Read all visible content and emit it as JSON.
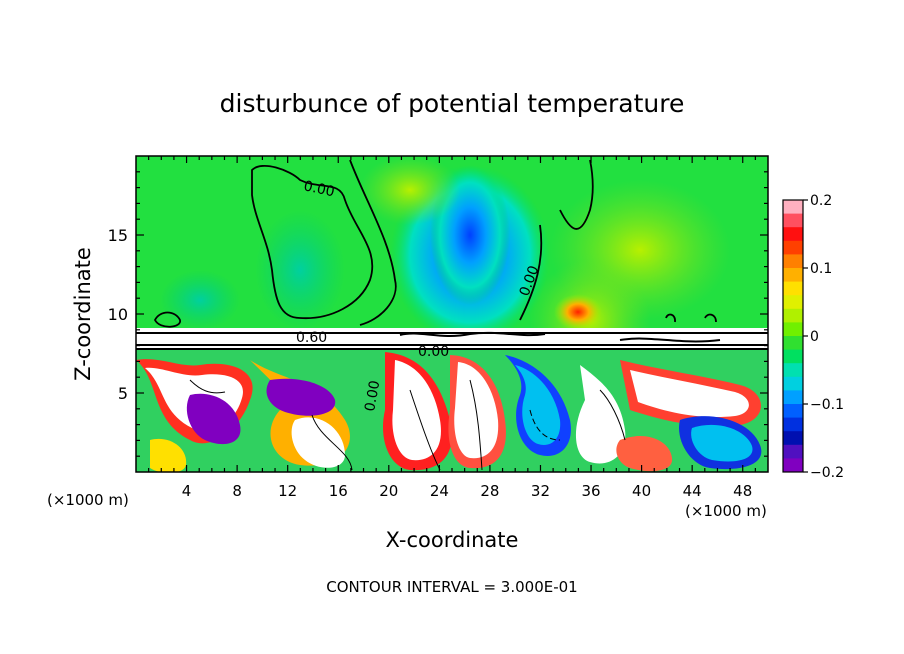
{
  "chart_data": {
    "type": "heatmap",
    "title": "disturbunce of potential temperature",
    "xlabel": "X-coordinate",
    "ylabel": "Z-coordinate",
    "x_unit": "(×1000 m)",
    "x_unit_right": "(×1000 m)",
    "x_ticks": [
      "4",
      "8",
      "12",
      "16",
      "20",
      "24",
      "28",
      "32",
      "36",
      "40",
      "44",
      "48"
    ],
    "x_tick_values": [
      4,
      8,
      12,
      16,
      20,
      24,
      28,
      32,
      36,
      40,
      44,
      48
    ],
    "xlim": [
      0,
      50
    ],
    "y_ticks": [
      "5",
      "10",
      "15"
    ],
    "y_tick_values": [
      5,
      10,
      15
    ],
    "ylim": [
      0,
      20
    ],
    "colorbar": {
      "ticks": [
        "0.2",
        "0.1",
        "0",
        "−0.1",
        "−0.2"
      ],
      "tick_values": [
        0.2,
        0.1,
        0,
        -0.1,
        -0.2
      ],
      "range": [
        -0.2,
        0.2
      ],
      "colors": [
        "#ffb0c0",
        "#ff5060",
        "#ff1010",
        "#ff4000",
        "#ff8000",
        "#ffb000",
        "#ffe000",
        "#e0f000",
        "#b0f000",
        "#70f000",
        "#30e030",
        "#00e060",
        "#00e0b0",
        "#00d0e0",
        "#00a0ff",
        "#0060ff",
        "#0030e0",
        "#0010b0",
        "#5010c0",
        "#8000c0"
      ]
    },
    "contour_labels": [
      "0.00",
      "0.00",
      "0.60",
      "0.00",
      "0.00"
    ],
    "footer": "CONTOUR INTERVAL =  3.000E-01"
  }
}
